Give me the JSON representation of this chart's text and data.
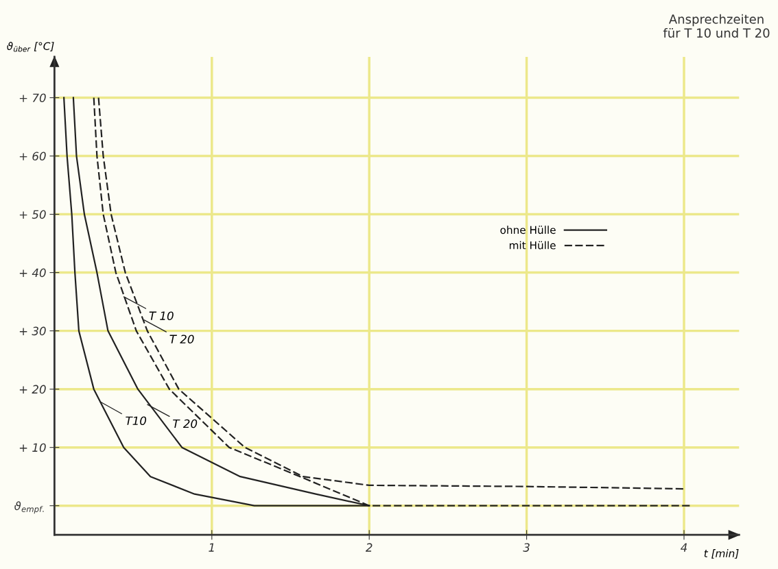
{
  "chart_data": {
    "type": "line",
    "title": "Ansprechzeiten\nfür T 10 und T 20",
    "xlabel": "t [min]",
    "ylabel": "ϑ$_{über}$ [°C]",
    "xlim": [
      0,
      4.35
    ],
    "ylim": [
      -5,
      77
    ],
    "xticks": [
      1,
      2,
      3,
      4
    ],
    "yticks": [
      {
        "value": 0,
        "label": "ϑ$_{empf.}$"
      },
      {
        "value": 10,
        "label": "+ 10"
      },
      {
        "value": 20,
        "label": "+ 20"
      },
      {
        "value": 30,
        "label": "+ 30"
      },
      {
        "value": 40,
        "label": "+ 40"
      },
      {
        "value": 50,
        "label": "+ 50"
      },
      {
        "value": 60,
        "label": "+ 60"
      },
      {
        "value": 70,
        "label": "+ 70"
      }
    ],
    "grid": true,
    "legend": "right",
    "series": [
      {
        "name": "ohne Hülle",
        "color": "#222222",
        "line_style": "solid",
        "x": [
          0.06,
          0.08,
          0.11,
          0.13,
          0.155,
          0.25,
          0.44,
          0.61,
          0.89,
          1.27,
          2.0
        ],
        "values": [
          70,
          60,
          50,
          40,
          30,
          20,
          10,
          5,
          2,
          0,
          0
        ]
      },
      {
        "color": "#222222",
        "line_style": "solid",
        "x": [
          0.12,
          0.14,
          0.19,
          0.27,
          0.34,
          0.53,
          0.81,
          1.18,
          1.66,
          2.0
        ],
        "values": [
          70,
          60,
          50,
          40,
          30,
          20,
          10,
          5,
          2,
          0
        ]
      },
      {
        "name": "mit Hülle",
        "color": "#222222",
        "line_style": "dashed",
        "x": [
          0.25,
          0.27,
          0.31,
          0.39,
          0.52,
          0.73,
          1.11,
          1.56,
          2.0,
          3.0,
          4.05
        ],
        "values": [
          70,
          60,
          50,
          40,
          30,
          20,
          10,
          5,
          0,
          0,
          0
        ]
      },
      {
        "color": "#222222",
        "line_style": "dashed",
        "x": [
          0.28,
          0.31,
          0.36,
          0.45,
          0.59,
          0.79,
          1.21,
          1.58,
          2.0,
          3.0,
          4.0
        ],
        "values": [
          70,
          60,
          50,
          40,
          30,
          20,
          10,
          5,
          3.5,
          3.3,
          2.9
        ]
      }
    ],
    "annotations": [
      {
        "text": "T10",
        "x": 0.28,
        "y": 18
      },
      {
        "text": "T 20",
        "x": 0.58,
        "y": 17.5
      },
      {
        "text": "T 10",
        "x": 0.43,
        "y": 36
      },
      {
        "text": "T 20",
        "x": 0.56,
        "y": 32
      }
    ]
  }
}
